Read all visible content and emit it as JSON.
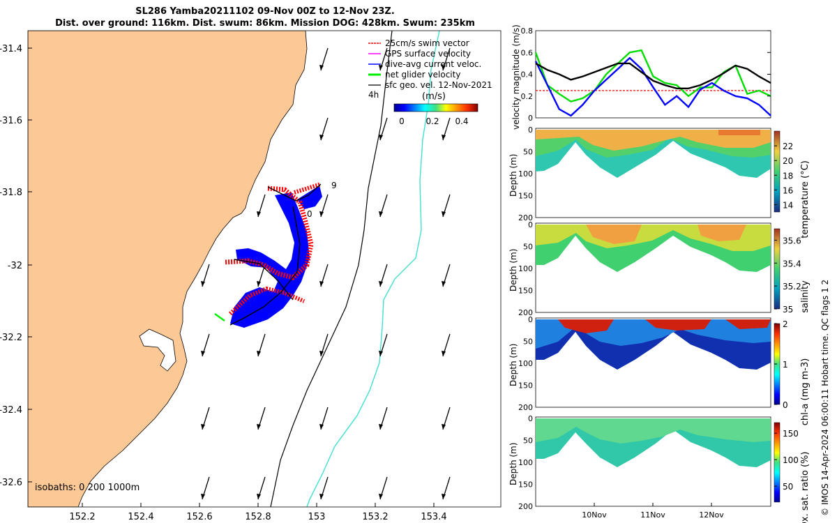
{
  "header": {
    "title_line1": "SL286 Yamba20211102 09-Nov 00Z to 12-Nov 23Z.",
    "title_line2": "Dist. over ground: 116km. Dist. swum: 86km. Mission DOG: 428km. Swum: 235km"
  },
  "map": {
    "lon_ticks": [
      "152.2",
      "152.4",
      "152.6",
      "152.8",
      "153",
      "153.2",
      "153.4"
    ],
    "lat_ticks": [
      "-31.4",
      "-31.6",
      "-31.8",
      "-32",
      "-32.2",
      "-32.4",
      "-32.6"
    ],
    "legend": [
      {
        "label": "25cm/s swim vector",
        "color": "#ff0000"
      },
      {
        "label": "GPS surface velocity",
        "color": "#ff00ff"
      },
      {
        "label": "dive-avg current veloc.",
        "color": "#0000ff"
      },
      {
        "label": "net glider velocity",
        "color": "#00ee00"
      },
      {
        "label": "sfc geo. vel. 12-Nov-2021",
        "color": "#000000"
      }
    ],
    "colorbar_title": "(m/s)",
    "colorbar_ticks": [
      "0",
      "0.2",
      "0.4"
    ],
    "time_label": "4h",
    "track_labels": [
      "9",
      "0"
    ],
    "isobaths_label": "isobaths: 0   200 1000m",
    "colors": {
      "land": "#fbc896",
      "isobath_200": "#000000",
      "isobath_1000": "#40e0d0"
    }
  },
  "chart_data": [
    {
      "type": "line",
      "ylabel": "velocity magnitude (m/s)",
      "ylim": [
        0,
        0.8
      ],
      "y_ticks": [
        "0",
        "0.2",
        "0.4",
        "0.6",
        "0.8"
      ],
      "x": [
        0,
        0.2,
        0.4,
        0.6,
        0.8,
        1.0,
        1.2,
        1.4,
        1.6,
        1.8,
        2.0,
        2.2,
        2.4,
        2.6,
        2.8,
        3.0,
        3.2,
        3.4,
        3.6,
        3.8,
        4.0
      ],
      "series": [
        {
          "color": "#ff0000",
          "values": [
            0.25,
            0.25,
            0.25,
            0.25,
            0.25,
            0.25,
            0.25,
            0.25,
            0.25,
            0.25,
            0.25,
            0.25,
            0.25,
            0.25,
            0.25,
            0.25,
            0.25,
            0.25,
            0.25,
            0.25,
            0.25
          ]
        },
        {
          "color": "#00dd00",
          "values": [
            0.6,
            0.3,
            0.22,
            0.15,
            0.18,
            0.25,
            0.4,
            0.5,
            0.6,
            0.62,
            0.38,
            0.32,
            0.3,
            0.2,
            0.28,
            0.28,
            0.42,
            0.48,
            0.22,
            0.25,
            0.2
          ]
        },
        {
          "color": "#0000ff",
          "values": [
            0.52,
            0.3,
            0.08,
            0.02,
            0.12,
            0.25,
            0.35,
            0.45,
            0.55,
            0.45,
            0.28,
            0.12,
            0.2,
            0.1,
            0.26,
            0.32,
            0.25,
            0.2,
            0.18,
            0.12,
            0.02
          ]
        },
        {
          "color": "#000000",
          "values": [
            0.5,
            0.44,
            0.4,
            0.35,
            0.38,
            0.42,
            0.46,
            0.5,
            0.5,
            0.42,
            0.34,
            0.3,
            0.27,
            0.27,
            0.3,
            0.35,
            0.41,
            0.48,
            0.45,
            0.38,
            0.32
          ]
        }
      ]
    },
    {
      "type": "heatmap",
      "ylabel": "Depth (m)",
      "ylim": [
        200,
        0
      ],
      "y_ticks": [
        "0",
        "50",
        "100",
        "150",
        "200"
      ],
      "colorbar_label": "temperature (°C)",
      "colorbar_ticks": [
        "14",
        "16",
        "18",
        "20",
        "22"
      ],
      "colorbar_range": [
        13,
        24
      ]
    },
    {
      "type": "heatmap",
      "ylabel": "Depth (m)",
      "ylim": [
        200,
        0
      ],
      "y_ticks": [
        "0",
        "50",
        "100",
        "150",
        "200"
      ],
      "colorbar_label": "salinity",
      "colorbar_ticks": [
        "35",
        "35.2",
        "35.4",
        "35.6"
      ],
      "colorbar_range": [
        35,
        35.7
      ]
    },
    {
      "type": "heatmap",
      "ylabel": "Depth (m)",
      "ylim": [
        200,
        0
      ],
      "y_ticks": [
        "0",
        "50",
        "100",
        "150",
        "200"
      ],
      "colorbar_label": "chl-a (mg m-3)",
      "colorbar_ticks": [
        "0",
        "1",
        "2"
      ],
      "colorbar_range": [
        0,
        2
      ]
    },
    {
      "type": "heatmap",
      "ylabel": "Depth (m)",
      "ylim": [
        200,
        0
      ],
      "y_ticks": [
        "0",
        "50",
        "100",
        "150",
        "200"
      ],
      "colorbar_label": "Ox. sat. ratio (%)",
      "colorbar_ticks": [
        "50",
        "100",
        "150"
      ],
      "colorbar_range": [
        20,
        170
      ]
    }
  ],
  "time_axis": {
    "ticks": [
      "10Nov",
      "11Nov",
      "12Nov"
    ]
  },
  "footer": {
    "credit": "© IMOS 14-Apr-2024 06:00:11 Hobart time. QC flags 1  2"
  }
}
